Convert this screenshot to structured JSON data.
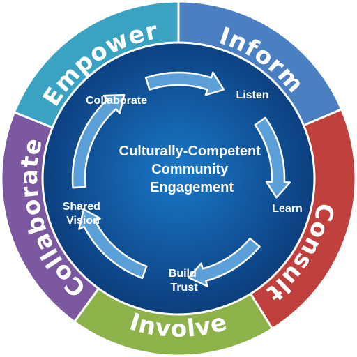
{
  "outer_ring": [
    {
      "label": "Inform",
      "color": "#4a7fc1"
    },
    {
      "label": "Consult",
      "color": "#c0403e"
    },
    {
      "label": "Involve",
      "color": "#8db24a"
    },
    {
      "label": "Collaborate",
      "color": "#7b58a0"
    },
    {
      "label": "Empower",
      "color": "#3aa3c2"
    }
  ],
  "center": {
    "lines": [
      "Culturally-Competent",
      "Community",
      "Engagement"
    ]
  },
  "cycle_steps": [
    {
      "lines": [
        "Listen"
      ]
    },
    {
      "lines": [
        "Learn"
      ]
    },
    {
      "lines": [
        "Build",
        "Trust"
      ]
    },
    {
      "lines": [
        "Shared",
        "Vision"
      ]
    },
    {
      "lines": [
        "Collaborate"
      ]
    }
  ],
  "colors": {
    "inner_center": "#1a78c8",
    "inner_edge": "#0b3a78",
    "arrow_fill": "#5a9fd8"
  }
}
